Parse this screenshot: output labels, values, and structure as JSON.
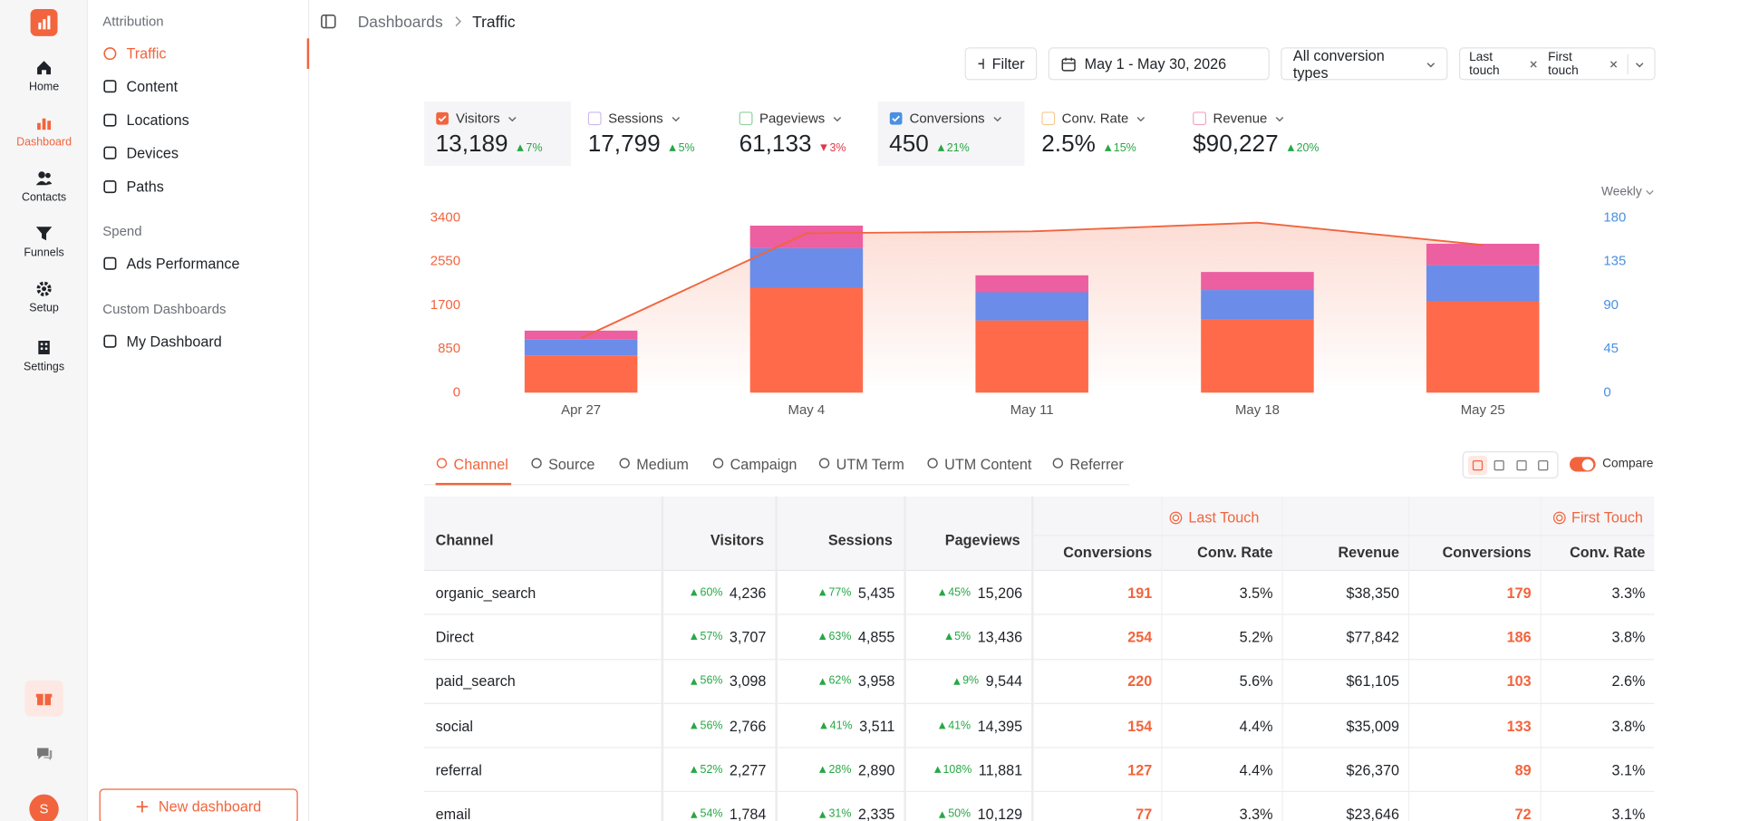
{
  "nav": {
    "items": [
      {
        "label": "Home",
        "active": false
      },
      {
        "label": "Dashboard",
        "active": true
      },
      {
        "label": "Contacts",
        "active": false
      },
      {
        "label": "Funnels",
        "active": false
      },
      {
        "label": "Setup",
        "active": false
      },
      {
        "label": "Settings",
        "active": false
      }
    ],
    "avatar": "S"
  },
  "sidebar": {
    "sections": [
      {
        "title": "Attribution",
        "items": [
          {
            "label": "Traffic",
            "active": true
          },
          {
            "label": "Content",
            "active": false
          },
          {
            "label": "Locations",
            "active": false
          },
          {
            "label": "Devices",
            "active": false
          },
          {
            "label": "Paths",
            "active": false
          }
        ]
      },
      {
        "title": "Spend",
        "items": [
          {
            "label": "Ads Performance",
            "active": false
          }
        ]
      },
      {
        "title": "Custom Dashboards",
        "items": [
          {
            "label": "My Dashboard",
            "active": false
          }
        ]
      }
    ],
    "new_button": "New dashboard"
  },
  "breadcrumb": [
    "Dashboards",
    "Traffic"
  ],
  "toolbar": {
    "filter": "Filter",
    "date": "May 1 - May 30, 2026",
    "conversion": "All conversion types",
    "touch": [
      "Last touch",
      "First touch"
    ]
  },
  "metrics": [
    {
      "label": "Visitors",
      "value": "13,189",
      "change": "7%",
      "direction": "up",
      "color": "#f2643d",
      "checked": true
    },
    {
      "label": "Sessions",
      "value": "17,799",
      "change": "5%",
      "direction": "up",
      "color": "#c9b8f0",
      "checked": false
    },
    {
      "label": "Pageviews",
      "value": "61,133",
      "change": "3%",
      "direction": "down",
      "color": "#8fd19e",
      "checked": false
    },
    {
      "label": "Conversions",
      "value": "450",
      "change": "21%",
      "direction": "up",
      "color": "#4a90e2",
      "checked": true
    },
    {
      "label": "Conv. Rate",
      "value": "2.5%",
      "change": "15%",
      "direction": "up",
      "color": "#f7c98b",
      "checked": false
    },
    {
      "label": "Revenue",
      "value": "$90,227",
      "change": "20%",
      "direction": "up",
      "color": "#f3a3c0",
      "checked": false
    }
  ],
  "chart_data": {
    "type": "bar",
    "period": "Weekly",
    "categories": [
      "Apr 27",
      "May 4",
      "May 11",
      "May 18",
      "May 25"
    ],
    "series": [
      {
        "color": "#ff6b4a",
        "values": [
          724,
          2040,
          1404,
          1425,
          1776
        ]
      },
      {
        "color": "#6b8ce8",
        "values": [
          307,
          768,
          548,
          570,
          702
        ]
      },
      {
        "color": "#ec5fa0",
        "values": [
          175,
          439,
          329,
          351,
          417
        ]
      },
      {
        "type": "line",
        "axis": "y2",
        "color": "#f2643d",
        "values": [
          56,
          164,
          166,
          175,
          152
        ]
      }
    ],
    "ylim": [
      0,
      3400
    ],
    "yticks": [
      0,
      850,
      1700,
      2550,
      3400
    ],
    "y2lim": [
      0,
      180
    ],
    "y2ticks": [
      0,
      45,
      90,
      135,
      180
    ]
  },
  "tabs": [
    {
      "label": "Channel",
      "active": true
    },
    {
      "label": "Source",
      "active": false
    },
    {
      "label": "Medium",
      "active": false
    },
    {
      "label": "Campaign",
      "active": false
    },
    {
      "label": "UTM Term",
      "active": false
    },
    {
      "label": "UTM Content",
      "active": false
    },
    {
      "label": "Referrer",
      "active": false
    }
  ],
  "compare": "Compare",
  "table": {
    "columns": [
      "Channel",
      "Visitors",
      "Sessions",
      "Pageviews"
    ],
    "groups": [
      {
        "label": "Last Touch",
        "columns": [
          "Conversions",
          "Conv. Rate",
          "Revenue"
        ]
      },
      {
        "label": "First Touch",
        "columns": [
          "Conversions",
          "Conv. Rate"
        ]
      }
    ],
    "rows": [
      {
        "channel": "organic_search",
        "changes": [
          "60%",
          "77%",
          "45%"
        ],
        "cells": [
          "4,236",
          "5,435",
          "15,206",
          "191",
          "3.5%",
          "$38,350",
          "179",
          "3.3%"
        ]
      },
      {
        "channel": "Direct",
        "changes": [
          "57%",
          "63%",
          "5%"
        ],
        "cells": [
          "3,707",
          "4,855",
          "13,436",
          "254",
          "5.2%",
          "$77,842",
          "186",
          "3.8%"
        ]
      },
      {
        "channel": "paid_search",
        "changes": [
          "56%",
          "62%",
          "9%"
        ],
        "cells": [
          "3,098",
          "3,958",
          "9,544",
          "220",
          "5.6%",
          "$61,105",
          "103",
          "2.6%"
        ]
      },
      {
        "channel": "social",
        "changes": [
          "56%",
          "41%",
          "41%"
        ],
        "cells": [
          "2,766",
          "3,511",
          "14,395",
          "154",
          "4.4%",
          "$35,009",
          "133",
          "3.8%"
        ]
      },
      {
        "channel": "referral",
        "changes": [
          "52%",
          "28%",
          "108%"
        ],
        "cells": [
          "2,277",
          "2,890",
          "11,881",
          "127",
          "4.4%",
          "$26,370",
          "89",
          "3.1%"
        ]
      },
      {
        "channel": "email",
        "changes": [
          "54%",
          "31%",
          "50%"
        ],
        "cells": [
          "1,784",
          "2,335",
          "10,129",
          "77",
          "3.3%",
          "$23,646",
          "72",
          "3.1%"
        ]
      }
    ]
  }
}
